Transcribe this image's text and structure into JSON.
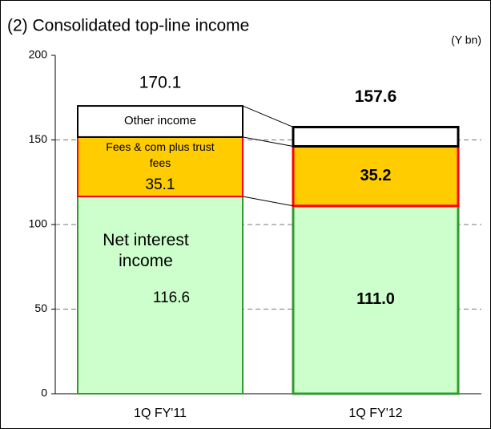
{
  "chart_data": {
    "type": "stacked_bar",
    "title": "(2) Consolidated top-line income",
    "unit_label": "(Y bn)",
    "categories": [
      "1Q FY'11",
      "1Q FY'12"
    ],
    "series": [
      {
        "name": "Net interest income",
        "color": "#ccffcc",
        "stroke": "#339933",
        "values": [
          116.6,
          111.0
        ],
        "value_labels": [
          "116.6",
          "111.0"
        ]
      },
      {
        "name": "Fees & com plus trust fees",
        "color": "#ffcc00",
        "stroke": "#ff0000",
        "values": [
          35.1,
          35.2
        ],
        "value_labels": [
          "35.1",
          "35.2"
        ]
      },
      {
        "name": "Other income",
        "color": "#ffffff",
        "stroke": "#000000",
        "values": [
          18.4,
          11.4
        ]
      }
    ],
    "totals": [
      170.1,
      157.6
    ],
    "ylim": [
      0,
      200
    ],
    "yticks": [
      0,
      50,
      100,
      150,
      200
    ],
    "grid": true
  }
}
